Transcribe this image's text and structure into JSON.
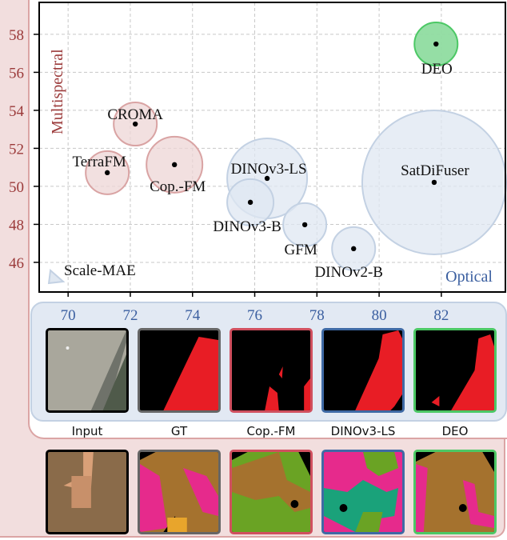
{
  "chart_data": {
    "type": "scatter",
    "subtype": "bubble",
    "xlim": [
      69.07,
      84.06
    ],
    "ylim": [
      44.44,
      59.68
    ],
    "xticks": [
      "70",
      "72",
      "74",
      "76",
      "78",
      "80",
      "82"
    ],
    "yticks": [
      "46",
      "48",
      "50",
      "52",
      "54",
      "56",
      "58"
    ],
    "grid": true,
    "group_labels": {
      "multispectral": "Multispectral",
      "optical": "Optical"
    },
    "points": [
      {
        "name": "CROMA",
        "x": 72.16,
        "y": 53.28,
        "size": 27,
        "group": "multispectral"
      },
      {
        "name": "TerraFM",
        "x": 71.26,
        "y": 50.72,
        "size": 27,
        "group": "multispectral"
      },
      {
        "name": "Cop.-FM",
        "x": 73.42,
        "y": 51.14,
        "size": 35,
        "group": "multispectral"
      },
      {
        "name": "DINOv3-LS",
        "x": 76.4,
        "y": 50.42,
        "size": 50,
        "group": "optical"
      },
      {
        "name": "DINOv3-B",
        "x": 75.86,
        "y": 49.16,
        "size": 29,
        "group": "optical"
      },
      {
        "name": "GFM",
        "x": 77.61,
        "y": 47.98,
        "size": 27,
        "group": "optical"
      },
      {
        "name": "DINOv2-B",
        "x": 79.18,
        "y": 46.72,
        "size": 27,
        "group": "optical"
      },
      {
        "name": "SatDiFuser",
        "x": 81.77,
        "y": 50.21,
        "size": 90,
        "group": "optical"
      },
      {
        "name": "DEO",
        "x": 81.83,
        "y": 57.49,
        "size": 27,
        "group": "ours"
      },
      {
        "name": "Scale-MAE",
        "x": 69.56,
        "y": 45.28,
        "size": 0,
        "group": "optical",
        "marker": "triangle"
      }
    ],
    "colors": {
      "multispectral_fill": "#eed6d6",
      "multispectral_stroke": "#d9a3a3",
      "optical_fill": "#dfe7f1",
      "optical_stroke": "#c3d1e3",
      "ours_fill": "#8fdca0",
      "ours_stroke": "#4cc865",
      "ytick_color": "#9b3a3a",
      "xtick_color": "#3b5fa0"
    }
  },
  "examples": {
    "columns": [
      "Input",
      "GT",
      "Cop.-FM",
      "DINOv3-LS",
      "DEO"
    ],
    "border_colors": [
      "#000000",
      "#666666",
      "#d0505f",
      "#3f6aa5",
      "#4cc865"
    ]
  }
}
